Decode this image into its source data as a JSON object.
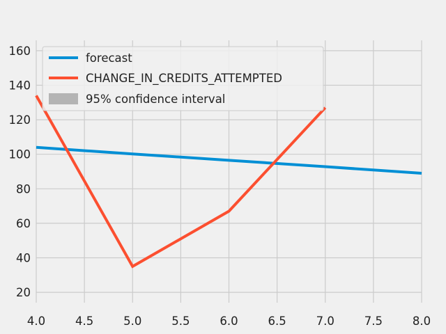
{
  "chart_data": {
    "type": "line",
    "title": "",
    "xlabel": "",
    "ylabel": "",
    "xlim": [
      4.0,
      8.0
    ],
    "ylim": [
      14,
      166
    ],
    "x_ticks": [
      "4.0",
      "4.5",
      "5.0",
      "5.5",
      "6.0",
      "6.5",
      "7.0",
      "7.5",
      "8.0"
    ],
    "y_ticks": [
      "20",
      "40",
      "60",
      "80",
      "100",
      "120",
      "140",
      "160"
    ],
    "grid": true,
    "legend_position": "top-left",
    "series": [
      {
        "name": "forecast",
        "color": "#008fd5",
        "x": [
          4.0,
          5.0,
          6.0,
          7.0,
          8.0
        ],
        "y": [
          104,
          100.2,
          96.5,
          92.8,
          89
        ]
      },
      {
        "name": "CHANGE_IN_CREDITS_ATTEMPTED",
        "color": "#fc4f30",
        "x": [
          4.0,
          5.0,
          6.0,
          7.0
        ],
        "y": [
          134,
          35,
          67,
          127
        ]
      }
    ],
    "confidence_band": {
      "name": "95% confidence interval",
      "color": "#b4b4b4"
    }
  }
}
